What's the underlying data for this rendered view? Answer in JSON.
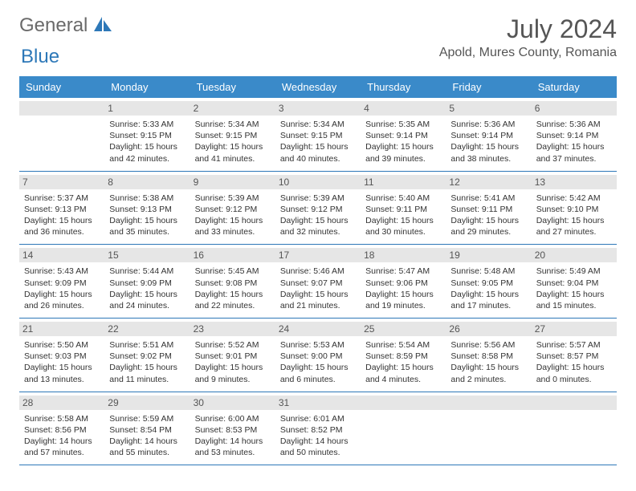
{
  "logo": {
    "part1": "General",
    "part2": "Blue"
  },
  "title": "July 2024",
  "location": "Apold, Mures County, Romania",
  "colors": {
    "header_bg": "#3a8ac9",
    "header_text": "#ffffff",
    "daynum_bg": "#e6e6e6",
    "border": "#2d78b8",
    "logo_gray": "#6a6a6a",
    "logo_blue": "#2d78b8"
  },
  "typography": {
    "title_fontsize": 32,
    "location_fontsize": 16,
    "header_fontsize": 13,
    "daynum_fontsize": 12,
    "body_fontsize": 10.5
  },
  "weekday_headers": [
    "Sunday",
    "Monday",
    "Tuesday",
    "Wednesday",
    "Thursday",
    "Friday",
    "Saturday"
  ],
  "weeks": [
    [
      {
        "blank": true
      },
      {
        "num": "1",
        "sunrise": "5:33 AM",
        "sunset": "9:15 PM",
        "daylight": "15 hours and 42 minutes."
      },
      {
        "num": "2",
        "sunrise": "5:34 AM",
        "sunset": "9:15 PM",
        "daylight": "15 hours and 41 minutes."
      },
      {
        "num": "3",
        "sunrise": "5:34 AM",
        "sunset": "9:15 PM",
        "daylight": "15 hours and 40 minutes."
      },
      {
        "num": "4",
        "sunrise": "5:35 AM",
        "sunset": "9:14 PM",
        "daylight": "15 hours and 39 minutes."
      },
      {
        "num": "5",
        "sunrise": "5:36 AM",
        "sunset": "9:14 PM",
        "daylight": "15 hours and 38 minutes."
      },
      {
        "num": "6",
        "sunrise": "5:36 AM",
        "sunset": "9:14 PM",
        "daylight": "15 hours and 37 minutes."
      }
    ],
    [
      {
        "num": "7",
        "sunrise": "5:37 AM",
        "sunset": "9:13 PM",
        "daylight": "15 hours and 36 minutes."
      },
      {
        "num": "8",
        "sunrise": "5:38 AM",
        "sunset": "9:13 PM",
        "daylight": "15 hours and 35 minutes."
      },
      {
        "num": "9",
        "sunrise": "5:39 AM",
        "sunset": "9:12 PM",
        "daylight": "15 hours and 33 minutes."
      },
      {
        "num": "10",
        "sunrise": "5:39 AM",
        "sunset": "9:12 PM",
        "daylight": "15 hours and 32 minutes."
      },
      {
        "num": "11",
        "sunrise": "5:40 AM",
        "sunset": "9:11 PM",
        "daylight": "15 hours and 30 minutes."
      },
      {
        "num": "12",
        "sunrise": "5:41 AM",
        "sunset": "9:11 PM",
        "daylight": "15 hours and 29 minutes."
      },
      {
        "num": "13",
        "sunrise": "5:42 AM",
        "sunset": "9:10 PM",
        "daylight": "15 hours and 27 minutes."
      }
    ],
    [
      {
        "num": "14",
        "sunrise": "5:43 AM",
        "sunset": "9:09 PM",
        "daylight": "15 hours and 26 minutes."
      },
      {
        "num": "15",
        "sunrise": "5:44 AM",
        "sunset": "9:09 PM",
        "daylight": "15 hours and 24 minutes."
      },
      {
        "num": "16",
        "sunrise": "5:45 AM",
        "sunset": "9:08 PM",
        "daylight": "15 hours and 22 minutes."
      },
      {
        "num": "17",
        "sunrise": "5:46 AM",
        "sunset": "9:07 PM",
        "daylight": "15 hours and 21 minutes."
      },
      {
        "num": "18",
        "sunrise": "5:47 AM",
        "sunset": "9:06 PM",
        "daylight": "15 hours and 19 minutes."
      },
      {
        "num": "19",
        "sunrise": "5:48 AM",
        "sunset": "9:05 PM",
        "daylight": "15 hours and 17 minutes."
      },
      {
        "num": "20",
        "sunrise": "5:49 AM",
        "sunset": "9:04 PM",
        "daylight": "15 hours and 15 minutes."
      }
    ],
    [
      {
        "num": "21",
        "sunrise": "5:50 AM",
        "sunset": "9:03 PM",
        "daylight": "15 hours and 13 minutes."
      },
      {
        "num": "22",
        "sunrise": "5:51 AM",
        "sunset": "9:02 PM",
        "daylight": "15 hours and 11 minutes."
      },
      {
        "num": "23",
        "sunrise": "5:52 AM",
        "sunset": "9:01 PM",
        "daylight": "15 hours and 9 minutes."
      },
      {
        "num": "24",
        "sunrise": "5:53 AM",
        "sunset": "9:00 PM",
        "daylight": "15 hours and 6 minutes."
      },
      {
        "num": "25",
        "sunrise": "5:54 AM",
        "sunset": "8:59 PM",
        "daylight": "15 hours and 4 minutes."
      },
      {
        "num": "26",
        "sunrise": "5:56 AM",
        "sunset": "8:58 PM",
        "daylight": "15 hours and 2 minutes."
      },
      {
        "num": "27",
        "sunrise": "5:57 AM",
        "sunset": "8:57 PM",
        "daylight": "15 hours and 0 minutes."
      }
    ],
    [
      {
        "num": "28",
        "sunrise": "5:58 AM",
        "sunset": "8:56 PM",
        "daylight": "14 hours and 57 minutes."
      },
      {
        "num": "29",
        "sunrise": "5:59 AM",
        "sunset": "8:54 PM",
        "daylight": "14 hours and 55 minutes."
      },
      {
        "num": "30",
        "sunrise": "6:00 AM",
        "sunset": "8:53 PM",
        "daylight": "14 hours and 53 minutes."
      },
      {
        "num": "31",
        "sunrise": "6:01 AM",
        "sunset": "8:52 PM",
        "daylight": "14 hours and 50 minutes."
      },
      {
        "blank": true
      },
      {
        "blank": true
      },
      {
        "blank": true
      }
    ]
  ],
  "labels": {
    "sunrise_prefix": "Sunrise: ",
    "sunset_prefix": "Sunset: ",
    "daylight_prefix": "Daylight: "
  }
}
